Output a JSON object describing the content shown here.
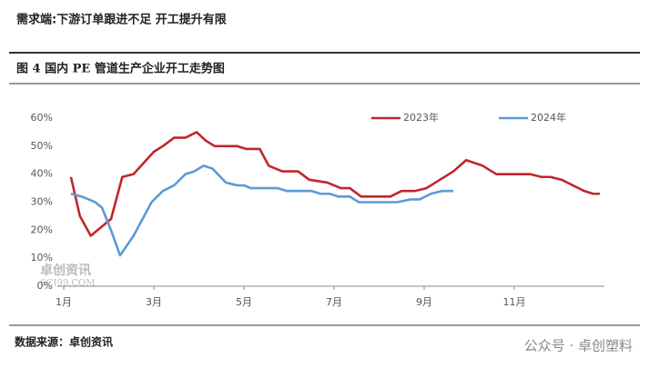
{
  "header": "需求端:下游订单跟进不足 开工提升有限",
  "figure_title": "图 4 国内 PE 管道生产企业开工走势图",
  "source": "数据来源：卓创资讯",
  "footer_brand": "公众号 · 卓创塑料",
  "watermark": [
    "卓创资讯",
    "SCI99.COM"
  ],
  "chart_data": {
    "type": "line",
    "xlim": [
      1,
      13
    ],
    "xticks": [
      {
        "value": 1,
        "label": "1月"
      },
      {
        "value": 3,
        "label": "3月"
      },
      {
        "value": 5,
        "label": "5月"
      },
      {
        "value": 7,
        "label": "7月"
      },
      {
        "value": 9,
        "label": "9月"
      },
      {
        "value": 11,
        "label": "11月"
      }
    ],
    "ylim": [
      0,
      60
    ],
    "yticks": [
      {
        "value": 0,
        "label": "0%"
      },
      {
        "value": 10,
        "label": "10%"
      },
      {
        "value": 20,
        "label": "20%"
      },
      {
        "value": 30,
        "label": "30%"
      },
      {
        "value": 40,
        "label": "40%"
      },
      {
        "value": 50,
        "label": "50%"
      },
      {
        "value": 60,
        "label": "60%"
      }
    ],
    "grid": false,
    "legend": "top",
    "series": [
      {
        "name": "2023年",
        "color": "#c0262d",
        "x": [
          1.16,
          1.36,
          1.6,
          2.05,
          2.3,
          2.55,
          3.0,
          3.2,
          3.45,
          3.7,
          3.95,
          4.15,
          4.35,
          4.85,
          5.05,
          5.35,
          5.55,
          5.85,
          6.2,
          6.45,
          6.85,
          7.15,
          7.35,
          7.6,
          8.25,
          8.5,
          8.8,
          9.05,
          9.35,
          9.65,
          9.93,
          10.3,
          10.6,
          11.35,
          11.6,
          11.8,
          12.05,
          12.55,
          12.75,
          12.9
        ],
        "values": [
          39,
          25,
          18,
          24,
          39,
          40,
          48,
          50,
          53,
          53,
          55,
          52,
          50,
          50,
          49,
          49,
          43,
          41,
          41,
          38,
          37,
          35,
          35,
          32,
          32,
          34,
          34,
          35,
          38,
          41,
          45,
          43,
          40,
          40,
          39,
          39,
          38,
          34,
          33,
          33
        ]
      },
      {
        "name": "2024年",
        "color": "#5b9bd5",
        "x": [
          1.16,
          1.4,
          1.7,
          1.85,
          2.05,
          2.25,
          2.55,
          2.95,
          3.2,
          3.45,
          3.7,
          3.9,
          4.1,
          4.3,
          4.6,
          4.85,
          5.0,
          5.15,
          5.75,
          5.95,
          6.5,
          6.7,
          6.9,
          7.1,
          7.35,
          7.55,
          8.4,
          8.7,
          8.9,
          9.15,
          9.4,
          9.65
        ],
        "values": [
          33,
          32,
          30,
          28,
          20,
          11,
          18,
          30,
          34,
          36,
          40,
          41,
          43,
          42,
          37,
          36,
          36,
          35,
          35,
          34,
          34,
          33,
          33,
          32,
          32,
          30,
          30,
          31,
          31,
          33,
          34,
          34
        ]
      }
    ]
  }
}
